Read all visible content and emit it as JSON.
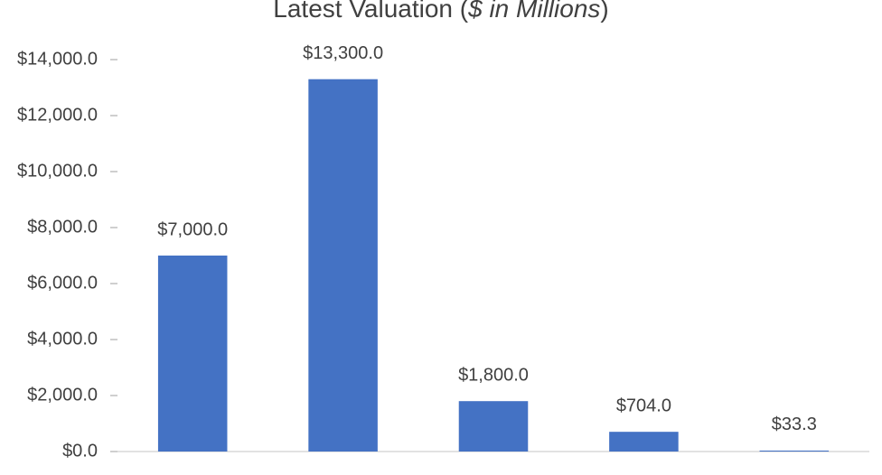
{
  "chart_data": {
    "type": "bar",
    "title": [
      "Latest Valuation (",
      "$ in Millions",
      ")"
    ],
    "categories": [
      null,
      null,
      null,
      null,
      null
    ],
    "values": [
      7000,
      13300,
      1800,
      704,
      33.3
    ],
    "value_labels": [
      "$7,000.0",
      "$13,300.0",
      "$1,800.0",
      "$704.0",
      "$33.3"
    ],
    "color": "#4472c4",
    "ylim": [
      0,
      14000
    ],
    "yticks": [
      {
        "value": 0,
        "label": "$0.0"
      },
      {
        "value": 2000,
        "label": "$2,000.0"
      },
      {
        "value": 4000,
        "label": "$4,000.0"
      },
      {
        "value": 6000,
        "label": "$6,000.0"
      },
      {
        "value": 8000,
        "label": "$8,000.0"
      },
      {
        "value": 10000,
        "label": "$10,000.0"
      },
      {
        "value": 12000,
        "label": "$12,000.0"
      },
      {
        "value": 14000,
        "label": "$14,000.0"
      }
    ],
    "grid": false
  }
}
